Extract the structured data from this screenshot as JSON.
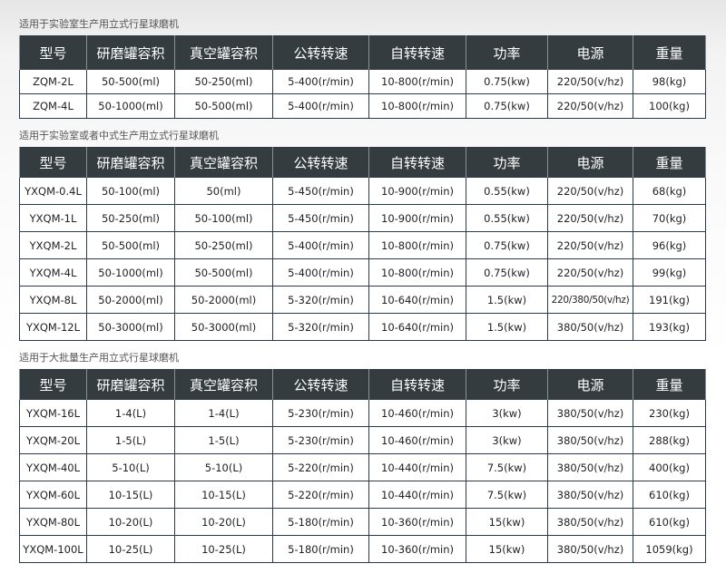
{
  "headers": [
    "型号",
    "研磨罐容积",
    "真空罐容积",
    "公转转速",
    "自转转速",
    "功率",
    "电源",
    "重量"
  ],
  "colors": {
    "header_bg": "#343c40",
    "border": "#2d3a4e"
  },
  "tables": [
    {
      "title": "适用于实验室生产用立式行星球磨机",
      "rows": [
        [
          "ZQM-2L",
          "50-500(ml)",
          "50-250(ml)",
          "5-400(r/min)",
          "10-800(r/min)",
          "0.75(kw)",
          "220/50(v/hz)",
          "98(kg)"
        ],
        [
          "ZQM-4L",
          "50-1000(ml)",
          "50-500(ml)",
          "5-400(r/min)",
          "10-800(r/min)",
          "0.75(kw)",
          "220/50(v/hz)",
          "100(kg)"
        ]
      ]
    },
    {
      "title": "适用于实验室或者中式生产用立式行星球磨机",
      "rows": [
        [
          "YXQM-0.4L",
          "50-100(ml)",
          "50(ml)",
          "5-450(r/min)",
          "10-900(r/min)",
          "0.55(kw)",
          "220/50(v/hz)",
          "68(kg)"
        ],
        [
          "YXQM-1L",
          "50-250(ml)",
          "50-100(ml)",
          "5-450(r/min)",
          "10-900(r/min)",
          "0.55(kw)",
          "220/50(v/hz)",
          "70(kg)"
        ],
        [
          "YXQM-2L",
          "50-500(ml)",
          "50-250(ml)",
          "5-400(r/min)",
          "10-800(r/min)",
          "0.75(kw)",
          "220/50(v/hz)",
          "96(kg)"
        ],
        [
          "YXQM-4L",
          "50-1000(ml)",
          "50-500(ml)",
          "5-400(r/min)",
          "10-800(r/min)",
          "0.75(kw)",
          "220/50(v/hz)",
          "99(kg)"
        ],
        [
          "YXQM-8L",
          "50-2000(ml)",
          "50-2000(ml)",
          "5-320(r/min)",
          "10-640(r/min)",
          "1.5(kw)",
          "220/380/50(v/hz)",
          "191(kg)"
        ],
        [
          "YXQM-12L",
          "50-3000(ml)",
          "50-3000(ml)",
          "5-320(r/min)",
          "10-640(r/min)",
          "1.5(kw)",
          "380/50(v/hz)",
          "193(kg)"
        ]
      ]
    },
    {
      "title": "适用于大批量生产用立式行星球磨机",
      "rows": [
        [
          "YXQM-16L",
          "1-4(L)",
          "1-4(L)",
          "5-230(r/min)",
          "10-460(r/min)",
          "3(kw)",
          "380/50(v/hz)",
          "230(kg)"
        ],
        [
          "YXQM-20L",
          "1-5(L)",
          "1-5(L)",
          "5-230(r/min)",
          "10-460(r/min)",
          "3(kw)",
          "380/50(v/hz)",
          "288(kg)"
        ],
        [
          "YXQM-40L",
          "5-10(L)",
          "5-10(L)",
          "5-220(r/min)",
          "10-440(r/min)",
          "7.5(kw)",
          "380/50(v/hz)",
          "400(kg)"
        ],
        [
          "YXQM-60L",
          "10-15(L)",
          "10-15(L)",
          "5-220(r/min)",
          "10-440(r/min)",
          "7.5(kw)",
          "380/50(v/hz)",
          "610(kg)"
        ],
        [
          "YXQM-80L",
          "10-20(L)",
          "10-20(L)",
          "5-180(r/min)",
          "10-360(r/min)",
          "15(kw)",
          "380/50(v/hz)",
          "610(kg)"
        ],
        [
          "YXQM-100L",
          "10-25(L)",
          "10-25(L)",
          "5-180(r/min)",
          "10-360(r/min)",
          "15(kw)",
          "380/50(v/hz)",
          "1059(kg)"
        ]
      ]
    }
  ]
}
